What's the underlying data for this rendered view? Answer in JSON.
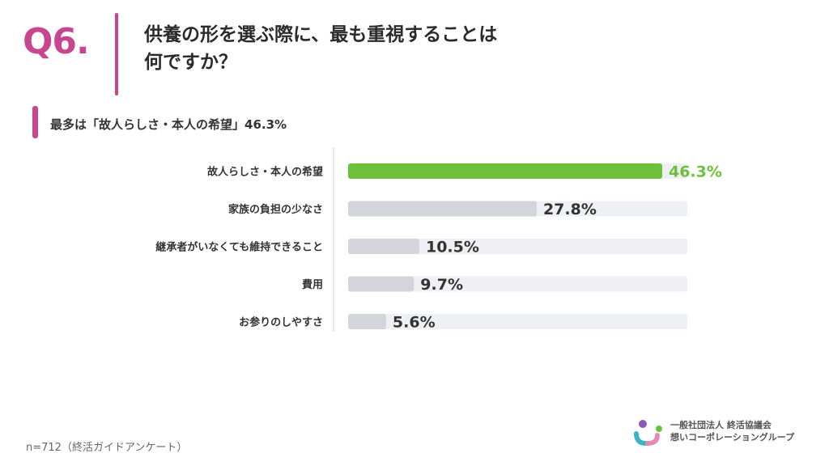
{
  "question_number": "Q6.",
  "title_line1": "供養の形を選ぶ際に、最も重視することは",
  "title_line2": "何ですか？",
  "subtitle": "最多は「故人らしさ・本人の希望」46.3%",
  "footnote": "n=712（終活ガイドアンケート）",
  "logo": {
    "line1": "一般社団法人 終活協議会",
    "line2": "想いコーポレーショングループ"
  },
  "colors": {
    "accent": "#c7468f",
    "highlight_bar": "#6cc03c",
    "bar": "#d3d5db",
    "track": "#eef0f3"
  },
  "chart_data": {
    "type": "bar",
    "orientation": "horizontal",
    "categories": [
      "故人らしさ・本人の希望",
      "家族の負担の少なさ",
      "継承者がいなくても維持できること",
      "費用",
      "お参りのしやすさ"
    ],
    "values": [
      46.3,
      27.8,
      10.5,
      9.7,
      5.6
    ],
    "value_labels": [
      "46.3%",
      "27.8%",
      "10.5%",
      "9.7%",
      "5.6%"
    ],
    "xlim": [
      0,
      50
    ],
    "highlight_index": 0,
    "grid": false
  }
}
